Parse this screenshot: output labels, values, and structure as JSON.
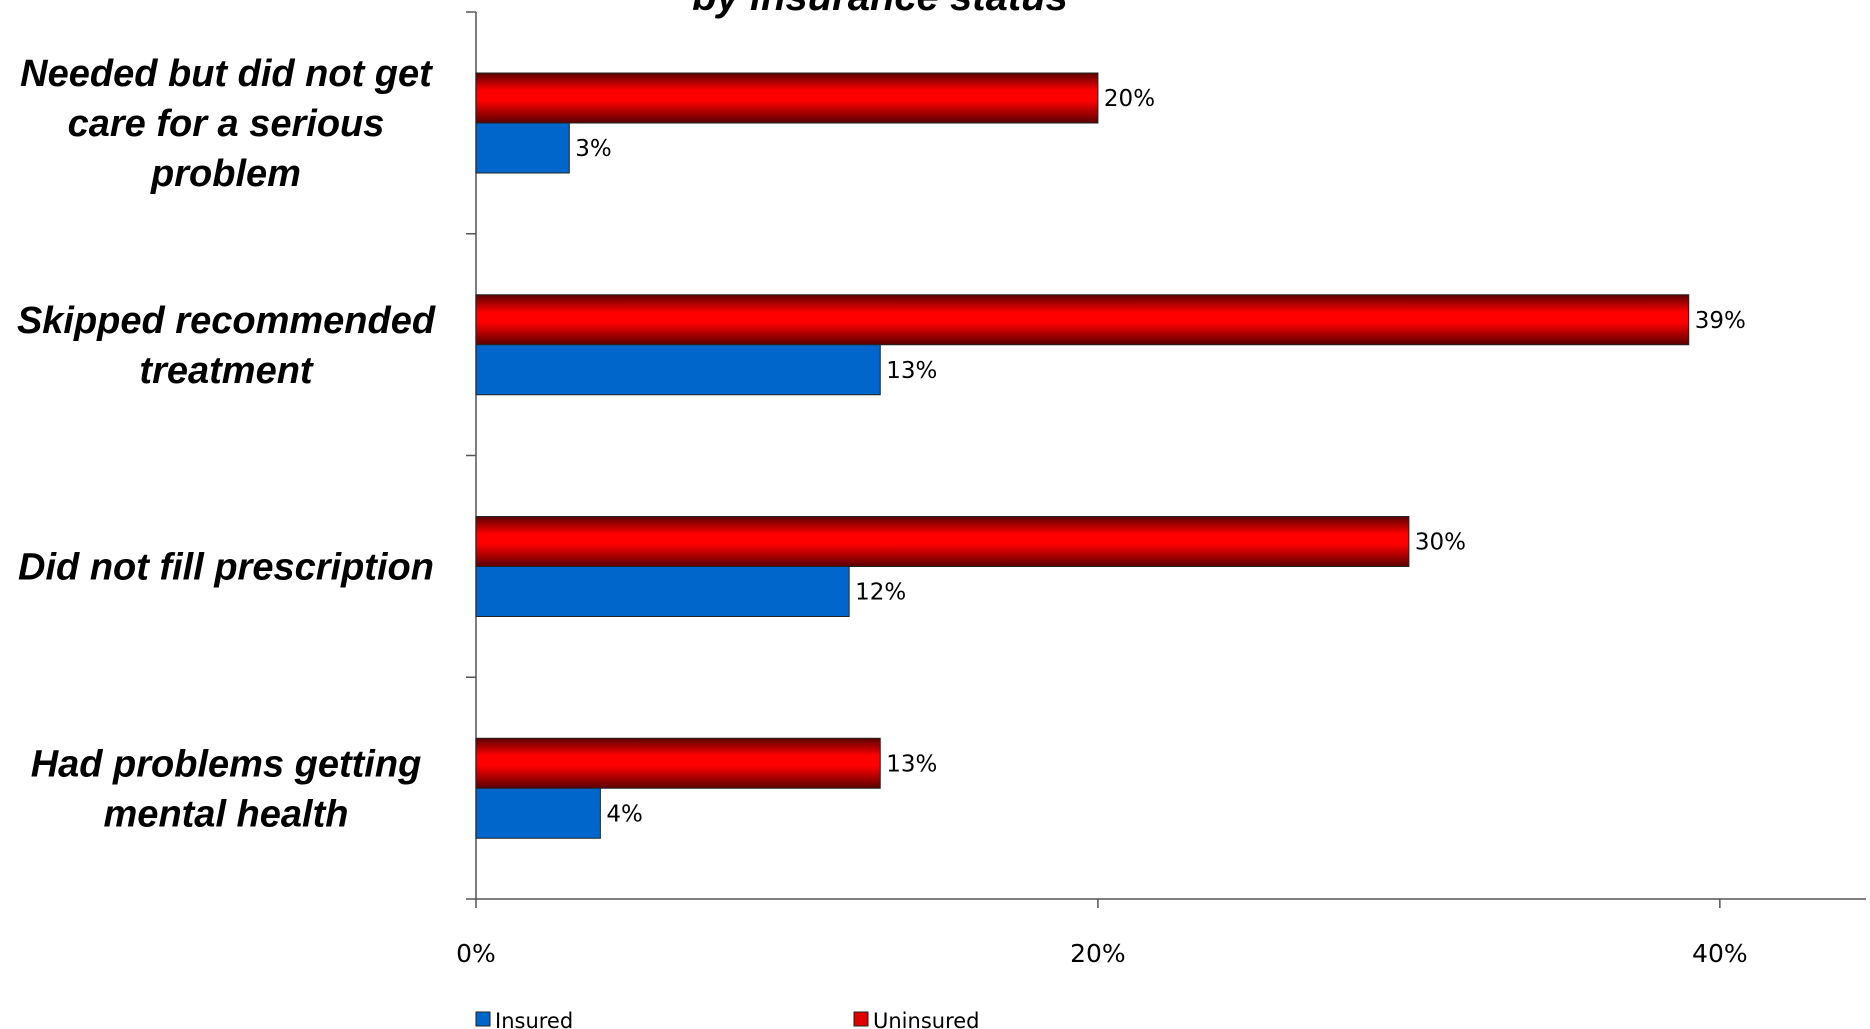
{
  "chart_data": {
    "type": "bar",
    "orientation": "horizontal",
    "title": "by insurance status",
    "categories": [
      "Needed but did not get care for a serious problem",
      "Skipped recommended treatment",
      "Did not fill prescription",
      "Had problems getting mental health"
    ],
    "category_lines": [
      [
        "Needed but did not get",
        "care for a serious",
        "problem"
      ],
      [
        "Skipped recommended",
        "treatment"
      ],
      [
        "Did not fill prescription"
      ],
      [
        "Had problems getting",
        "mental health"
      ]
    ],
    "series": [
      {
        "name": "Uninsured",
        "values": [
          20,
          39,
          30,
          13
        ],
        "labels": [
          "20%",
          "39%",
          "30%",
          "13%"
        ],
        "color": "#e00000"
      },
      {
        "name": "Insured",
        "values": [
          3,
          13,
          12,
          4
        ],
        "labels": [
          "3%",
          "13%",
          "12%",
          "4%"
        ],
        "color": "#0066cc"
      }
    ],
    "xlim": [
      0,
      44.7
    ],
    "x_ticks": [
      0,
      20,
      40
    ],
    "x_tick_labels": [
      "0%",
      "20%",
      "40%"
    ],
    "grid": false,
    "legend": {
      "placement": "bottom",
      "order": [
        "Insured",
        "Uninsured"
      ]
    }
  }
}
